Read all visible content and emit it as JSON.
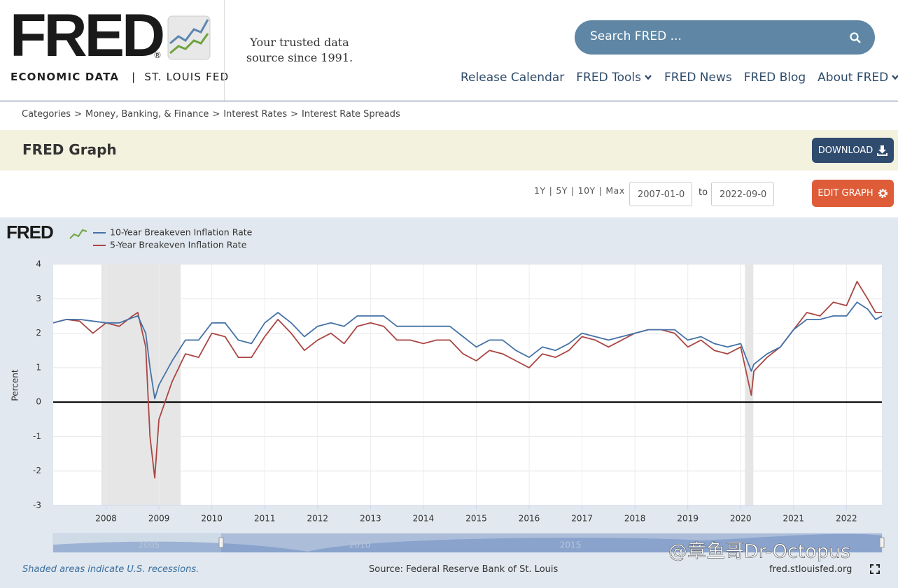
{
  "header": {
    "logo": "FRED",
    "registered": "®",
    "logo_sub_left": "ECONOMIC DATA",
    "logo_divider": "|",
    "logo_sub_right": "ST. LOUIS FED",
    "tagline": "Your trusted data source since 1991.",
    "search_placeholder": "Search FRED ...",
    "nav": [
      "Release Calendar",
      "FRED Tools",
      "FRED News",
      "FRED Blog",
      "About FRED"
    ]
  },
  "breadcrumb": {
    "items": [
      "Categories",
      "Money, Banking, & Finance",
      "Interest Rates",
      "Interest Rate Spreads"
    ],
    "separator": ">"
  },
  "graph_bar": {
    "title": "FRED Graph",
    "download": "DOWNLOAD"
  },
  "controls": {
    "ranges": [
      "1Y",
      "5Y",
      "10Y",
      "Max"
    ],
    "range_separator": "|",
    "start_date": "2007-01-0",
    "to": "to",
    "end_date": "2022-09-0",
    "edit": "EDIT GRAPH"
  },
  "chart_data": {
    "type": "line",
    "logo": "FRED",
    "ylabel": "Percent",
    "x": [
      2007.0,
      2007.25,
      2007.5,
      2007.75,
      2008.0,
      2008.25,
      2008.5,
      2008.6,
      2008.75,
      2008.83,
      2008.92,
      2009.0,
      2009.25,
      2009.5,
      2009.75,
      2010.0,
      2010.25,
      2010.5,
      2010.75,
      2011.0,
      2011.25,
      2011.5,
      2011.75,
      2012.0,
      2012.25,
      2012.5,
      2012.75,
      2013.0,
      2013.25,
      2013.5,
      2013.75,
      2014.0,
      2014.25,
      2014.5,
      2014.75,
      2015.0,
      2015.25,
      2015.5,
      2015.75,
      2016.0,
      2016.25,
      2016.5,
      2016.75,
      2017.0,
      2017.25,
      2017.5,
      2017.75,
      2018.0,
      2018.25,
      2018.5,
      2018.75,
      2019.0,
      2019.25,
      2019.5,
      2019.75,
      2020.0,
      2020.2,
      2020.25,
      2020.5,
      2020.75,
      2021.0,
      2021.25,
      2021.5,
      2021.75,
      2022.0,
      2022.2,
      2022.4,
      2022.55,
      2022.67
    ],
    "series": [
      {
        "name": "10-Year Breakeven Inflation Rate",
        "color": "#4572a7",
        "values": [
          2.3,
          2.4,
          2.4,
          2.35,
          2.3,
          2.3,
          2.45,
          2.5,
          2.0,
          1.0,
          0.1,
          0.5,
          1.2,
          1.8,
          1.8,
          2.3,
          2.3,
          1.8,
          1.7,
          2.3,
          2.6,
          2.3,
          1.9,
          2.2,
          2.3,
          2.2,
          2.5,
          2.5,
          2.5,
          2.2,
          2.2,
          2.2,
          2.2,
          2.2,
          1.9,
          1.6,
          1.8,
          1.8,
          1.5,
          1.3,
          1.6,
          1.5,
          1.7,
          2.0,
          1.9,
          1.8,
          1.9,
          2.0,
          2.1,
          2.1,
          2.1,
          1.8,
          1.9,
          1.7,
          1.6,
          1.7,
          0.9,
          1.1,
          1.4,
          1.6,
          2.1,
          2.4,
          2.4,
          2.5,
          2.5,
          2.9,
          2.7,
          2.4,
          2.5
        ]
      },
      {
        "name": "5-Year Breakeven Inflation Rate",
        "color": "#aa4643",
        "values": [
          2.3,
          2.4,
          2.35,
          2.0,
          2.3,
          2.2,
          2.5,
          2.6,
          1.6,
          -1.0,
          -2.2,
          -0.5,
          0.6,
          1.4,
          1.3,
          2.0,
          1.9,
          1.3,
          1.3,
          1.9,
          2.4,
          2.0,
          1.5,
          1.8,
          2.0,
          1.7,
          2.2,
          2.3,
          2.2,
          1.8,
          1.8,
          1.7,
          1.8,
          1.8,
          1.4,
          1.2,
          1.5,
          1.4,
          1.2,
          1.0,
          1.4,
          1.3,
          1.5,
          1.9,
          1.8,
          1.6,
          1.8,
          2.0,
          2.1,
          2.1,
          2.0,
          1.6,
          1.8,
          1.5,
          1.4,
          1.6,
          0.2,
          0.9,
          1.3,
          1.6,
          2.1,
          2.6,
          2.5,
          2.9,
          2.8,
          3.5,
          3.0,
          2.6,
          2.6
        ]
      }
    ],
    "xlim": [
      2007.0,
      2022.67
    ],
    "xticks": [
      2008,
      2009,
      2010,
      2011,
      2012,
      2013,
      2014,
      2015,
      2016,
      2017,
      2018,
      2019,
      2020,
      2021,
      2022
    ],
    "ylim": [
      -3,
      4
    ],
    "yticks": [
      -3,
      -2,
      -1,
      0,
      1,
      2,
      3,
      4
    ],
    "grid": true,
    "zero_line": true,
    "recessions": [
      [
        2007.91,
        2009.41
      ],
      [
        2020.08,
        2020.24
      ]
    ],
    "recession_color": "#e6e6e6",
    "navigator_labels": [
      "2005",
      "2010",
      "2015"
    ]
  },
  "footer": {
    "recession_note": "Shaded areas indicate U.S. recessions.",
    "source": "Source: Federal Reserve Bank of St. Louis",
    "site": "fred.stlouisfed.org"
  },
  "watermark": "@章鱼哥Dr-Octopus"
}
